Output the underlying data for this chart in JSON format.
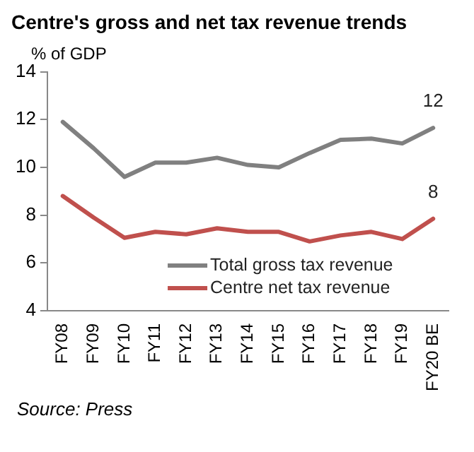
{
  "chart_data": {
    "type": "line",
    "title": "Centre's gross and net tax revenue trends",
    "ylabel": "% of GDP",
    "categories": [
      "FY08",
      "FY09",
      "FY10",
      "FY11",
      "FY12",
      "FY13",
      "FY14",
      "FY15",
      "FY16",
      "FY17",
      "FY18",
      "FY19",
      "FY20 BE"
    ],
    "series": [
      {
        "name": "Total gross tax revenue",
        "color": "#808080",
        "values": [
          11.9,
          10.8,
          9.6,
          10.2,
          10.2,
          10.4,
          10.1,
          10.0,
          10.6,
          11.15,
          11.2,
          11.0,
          11.65
        ],
        "value_labels": [
          null,
          null,
          null,
          null,
          null,
          null,
          null,
          null,
          null,
          null,
          null,
          null,
          "12"
        ]
      },
      {
        "name": "Centre net tax revenue",
        "color": "#c0504d",
        "values": [
          8.8,
          7.9,
          7.05,
          7.3,
          7.2,
          7.45,
          7.3,
          7.3,
          6.9,
          7.15,
          7.3,
          7.0,
          7.85
        ],
        "value_labels": [
          null,
          null,
          null,
          null,
          null,
          null,
          null,
          null,
          null,
          null,
          null,
          null,
          "8"
        ]
      }
    ],
    "ylim": [
      4,
      14
    ],
    "yticks": [
      4,
      6,
      8,
      10,
      12,
      14
    ],
    "grid": false,
    "legend": "bottom",
    "marker": "none",
    "line_style": "solid",
    "annotations": [
      "Source: Press"
    ]
  }
}
